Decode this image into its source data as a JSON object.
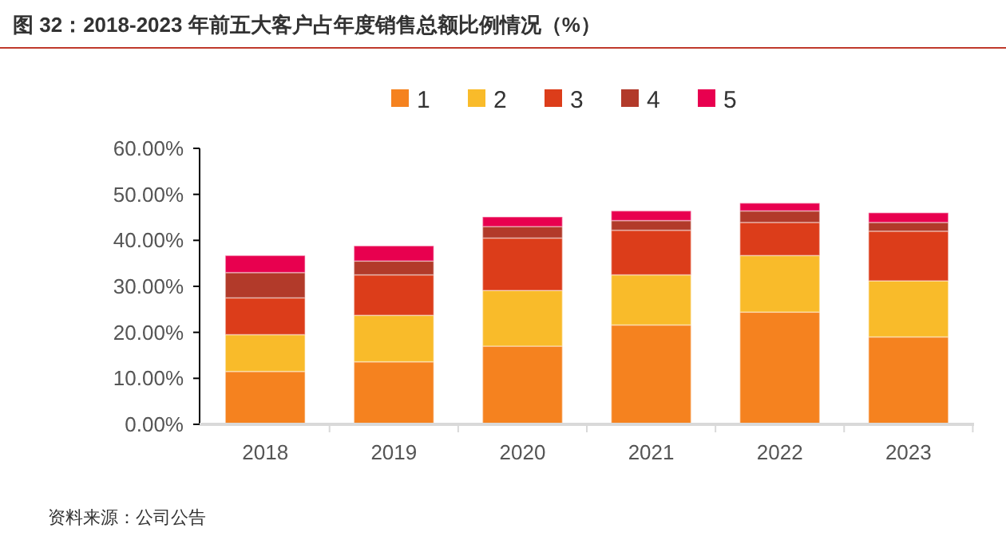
{
  "chart_data": {
    "type": "bar",
    "stacked": true,
    "title": "图 32：2018-2023 年前五大客户占年度销售总额比例情况（%）",
    "categories": [
      "2018",
      "2019",
      "2020",
      "2021",
      "2022",
      "2023"
    ],
    "series": [
      {
        "name": "1",
        "color": "#f5821f",
        "values": [
          11.5,
          13.6,
          17.0,
          21.6,
          24.4,
          19.0
        ]
      },
      {
        "name": "2",
        "color": "#f9bb2a",
        "values": [
          8.0,
          10.1,
          12.1,
          10.9,
          12.3,
          12.2
        ]
      },
      {
        "name": "3",
        "color": "#dc3d1a",
        "values": [
          8.0,
          8.8,
          11.4,
          9.7,
          7.2,
          10.8
        ]
      },
      {
        "name": "4",
        "color": "#b23a2a",
        "values": [
          5.5,
          3.0,
          2.5,
          2.1,
          2.5,
          1.9
        ]
      },
      {
        "name": "5",
        "color": "#e8004f",
        "values": [
          3.7,
          3.3,
          2.1,
          2.1,
          1.7,
          2.1
        ]
      }
    ],
    "ylim": [
      0,
      60
    ],
    "yticks": [
      {
        "value": 0,
        "label": "0.00%"
      },
      {
        "value": 10,
        "label": "10.00%"
      },
      {
        "value": 20,
        "label": "20.00%"
      },
      {
        "value": 30,
        "label": "30.00%"
      },
      {
        "value": 40,
        "label": "40.00%"
      },
      {
        "value": 50,
        "label": "50.00%"
      },
      {
        "value": 60,
        "label": "60.00%"
      }
    ],
    "legend": "top",
    "annotations": [
      "资料来源：公司公告"
    ]
  }
}
